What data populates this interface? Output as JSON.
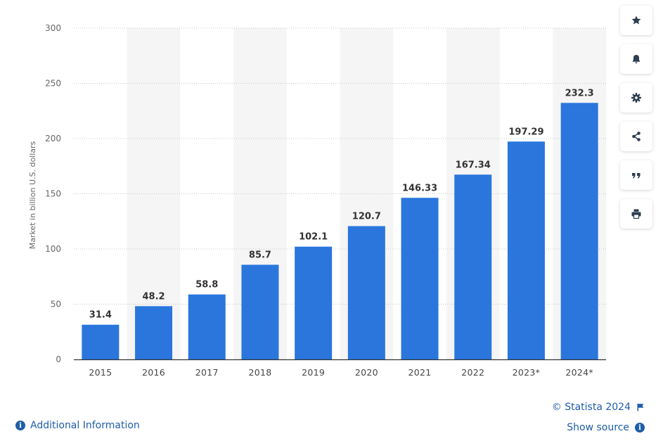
{
  "chart_data": {
    "type": "bar",
    "categories": [
      "2015",
      "2016",
      "2017",
      "2018",
      "2019",
      "2020",
      "2021",
      "2022",
      "2023*",
      "2024*"
    ],
    "values": [
      31.4,
      48.2,
      58.8,
      85.7,
      102.1,
      120.7,
      146.33,
      167.34,
      197.29,
      232.3
    ],
    "value_labels": [
      "31.4",
      "48.2",
      "58.8",
      "85.7",
      "102.1",
      "120.7",
      "146.33",
      "167.34",
      "197.29",
      "232.3"
    ],
    "ylabel": "Market in billion U.S. dollars",
    "ylim": [
      0,
      300
    ],
    "yticks": [
      0,
      50,
      100,
      150,
      200,
      250,
      300
    ],
    "grid": true,
    "bar_color": "#2a76dd",
    "band_color": "#f5f5f5"
  },
  "toolbar": {
    "buttons": [
      {
        "name": "favorite-button",
        "icon": "star-icon"
      },
      {
        "name": "notification-button",
        "icon": "bell-icon"
      },
      {
        "name": "settings-button",
        "icon": "gear-icon"
      },
      {
        "name": "share-button",
        "icon": "share-icon"
      },
      {
        "name": "cite-button",
        "icon": "quote-icon"
      },
      {
        "name": "print-button",
        "icon": "printer-icon"
      }
    ]
  },
  "footer": {
    "additional_info": "Additional Information",
    "copyright": "© Statista 2024",
    "show_source": "Show source",
    "link_color": "#1f5da8"
  }
}
